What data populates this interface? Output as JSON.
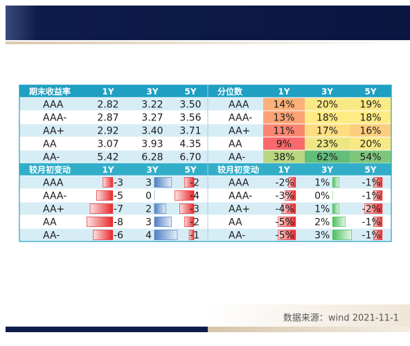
{
  "yield_table": {
    "title": "期末收益率",
    "columns": [
      "1Y",
      "3Y",
      "5Y"
    ],
    "rows": [
      {
        "label": "AAA",
        "values": [
          "2.82",
          "3.22",
          "3.50"
        ]
      },
      {
        "label": "AAA-",
        "values": [
          "2.87",
          "3.27",
          "3.56"
        ]
      },
      {
        "label": "AA+",
        "values": [
          "2.92",
          "3.40",
          "3.71"
        ]
      },
      {
        "label": "AA",
        "values": [
          "3.07",
          "3.93",
          "4.35"
        ]
      },
      {
        "label": "AA-",
        "values": [
          "5.42",
          "6.28",
          "6.70"
        ]
      }
    ]
  },
  "percentile_table": {
    "title": "分位数",
    "columns": [
      "1Y",
      "3Y",
      "5Y"
    ],
    "rows": [
      {
        "label": "AAA",
        "values": [
          "14%",
          "20%",
          "19%"
        ]
      },
      {
        "label": "AAA-",
        "values": [
          "13%",
          "18%",
          "18%"
        ]
      },
      {
        "label": "AA+",
        "values": [
          "11%",
          "17%",
          "16%"
        ]
      },
      {
        "label": "AA",
        "values": [
          "9%",
          "23%",
          "20%"
        ]
      },
      {
        "label": "AA-",
        "values": [
          "38%",
          "62%",
          "54%"
        ]
      }
    ]
  },
  "yield_change_table": {
    "title": "较月初变动",
    "columns": [
      "1Y",
      "3Y",
      "5Y"
    ],
    "rows": [
      {
        "label": "AAA",
        "values": [
          "-3",
          "3",
          "-2"
        ]
      },
      {
        "label": "AAA-",
        "values": [
          "-5",
          "0",
          "-4"
        ]
      },
      {
        "label": "AA+",
        "values": [
          "-7",
          "2",
          "-3"
        ]
      },
      {
        "label": "AA",
        "values": [
          "-8",
          "3",
          "-2"
        ]
      },
      {
        "label": "AA-",
        "values": [
          "-6",
          "4",
          "-1"
        ]
      }
    ]
  },
  "percentile_change_table": {
    "title": "较月初变动",
    "columns": [
      "1Y",
      "3Y",
      "5Y"
    ],
    "rows": [
      {
        "label": "AAA",
        "values": [
          "-2%",
          "1%",
          "-1%"
        ]
      },
      {
        "label": "AAA-",
        "values": [
          "-3%",
          "0%",
          "-1%"
        ]
      },
      {
        "label": "AA+",
        "values": [
          "-4%",
          "1%",
          "-2%"
        ]
      },
      {
        "label": "AA",
        "values": [
          "-5%",
          "2%",
          "-1%"
        ]
      },
      {
        "label": "AA-",
        "values": [
          "-5%",
          "3%",
          "-1%"
        ]
      }
    ]
  },
  "source": "数据来源：wind 2021-11-1"
}
